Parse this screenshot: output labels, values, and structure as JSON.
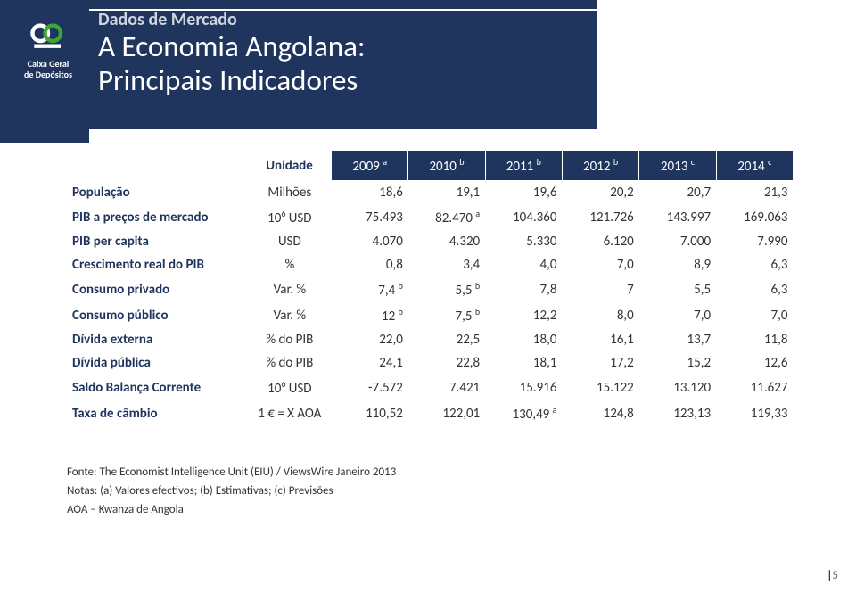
{
  "header": {
    "brand_lines": [
      "Caixa Geral",
      "de Depósitos"
    ],
    "section_label": "Dados de Mercado",
    "title_line1": "A Economia Angolana:",
    "title_line2": "Principais Indicadores"
  },
  "colors": {
    "primary": "#1f355e",
    "white": "#ffffff",
    "text": "#333333",
    "accent": "#3fa535"
  },
  "table": {
    "unit_header": "Unidade",
    "years": [
      {
        "label": "2009",
        "sup": "a"
      },
      {
        "label": "2010",
        "sup": "b"
      },
      {
        "label": "2011",
        "sup": "b"
      },
      {
        "label": "2012",
        "sup": "b"
      },
      {
        "label": "2013",
        "sup": "c"
      },
      {
        "label": "2014",
        "sup": "c"
      }
    ],
    "rows": [
      {
        "label": "População",
        "unit": "Milhões",
        "cells": [
          {
            "v": "18,6"
          },
          {
            "v": "19,1"
          },
          {
            "v": "19,6"
          },
          {
            "v": "20,2"
          },
          {
            "v": "20,7"
          },
          {
            "v": "21,3"
          }
        ]
      },
      {
        "label": "PIB a preços de mercado",
        "unit_html": "10<span class='sup'>6</span> USD",
        "cells": [
          {
            "v": "75.493"
          },
          {
            "v": "82.470",
            "sup": "a"
          },
          {
            "v": "104.360"
          },
          {
            "v": "121.726"
          },
          {
            "v": "143.997"
          },
          {
            "v": "169.063"
          }
        ]
      },
      {
        "label": "PIB per capita",
        "unit": "USD",
        "cells": [
          {
            "v": "4.070"
          },
          {
            "v": "4.320"
          },
          {
            "v": "5.330"
          },
          {
            "v": "6.120"
          },
          {
            "v": "7.000"
          },
          {
            "v": "7.990"
          }
        ]
      },
      {
        "label": "Crescimento real do PIB",
        "unit": "%",
        "cells": [
          {
            "v": "0,8"
          },
          {
            "v": "3,4"
          },
          {
            "v": "4,0"
          },
          {
            "v": "7,0"
          },
          {
            "v": "8,9"
          },
          {
            "v": "6,3"
          }
        ]
      },
      {
        "label": "Consumo privado",
        "unit": "Var. %",
        "cells": [
          {
            "v": "7,4",
            "sup": "b"
          },
          {
            "v": "5,5",
            "sup": "b"
          },
          {
            "v": "7,8"
          },
          {
            "v": "7"
          },
          {
            "v": "5,5"
          },
          {
            "v": "6,3"
          }
        ]
      },
      {
        "label": "Consumo público",
        "unit": "Var. %",
        "cells": [
          {
            "v": "12",
            "sup": "b"
          },
          {
            "v": "7,5",
            "sup": "b"
          },
          {
            "v": "12,2"
          },
          {
            "v": "8,0"
          },
          {
            "v": "7,0"
          },
          {
            "v": "7,0"
          }
        ]
      },
      {
        "label": "Dívida externa",
        "unit": "% do PIB",
        "cells": [
          {
            "v": "22,0"
          },
          {
            "v": "22,5"
          },
          {
            "v": "18,0"
          },
          {
            "v": "16,1"
          },
          {
            "v": "13,7"
          },
          {
            "v": "11,8"
          }
        ]
      },
      {
        "label": "Dívida pública",
        "unit": "% do PIB",
        "cells": [
          {
            "v": "24,1"
          },
          {
            "v": "22,8"
          },
          {
            "v": "18,1"
          },
          {
            "v": "17,2"
          },
          {
            "v": "15,2"
          },
          {
            "v": "12,6"
          }
        ]
      },
      {
        "label": "Saldo Balança Corrente",
        "unit_html": "10<span class='sup'>6</span> USD",
        "cells": [
          {
            "v": "-7.572"
          },
          {
            "v": "7.421"
          },
          {
            "v": "15.916"
          },
          {
            "v": "15.122"
          },
          {
            "v": "13.120"
          },
          {
            "v": "11.627"
          }
        ]
      },
      {
        "label": "Taxa de câmbio",
        "unit": "1 € = X AOA",
        "cells": [
          {
            "v": "110,52"
          },
          {
            "v": "122,01"
          },
          {
            "v": "130,49",
            "sup": "a"
          },
          {
            "v": "124,8"
          },
          {
            "v": "123,13"
          },
          {
            "v": "119,33"
          }
        ]
      }
    ]
  },
  "notes": {
    "source": "Fonte: The Economist Intelligence Unit (EIU) / ViewsWire Janeiro 2013",
    "legend": "Notas: (a) Valores efectivos; (b) Estimativas; (c) Previsões",
    "aoa": "AOA – Kwanza de Angola"
  },
  "page": "5"
}
